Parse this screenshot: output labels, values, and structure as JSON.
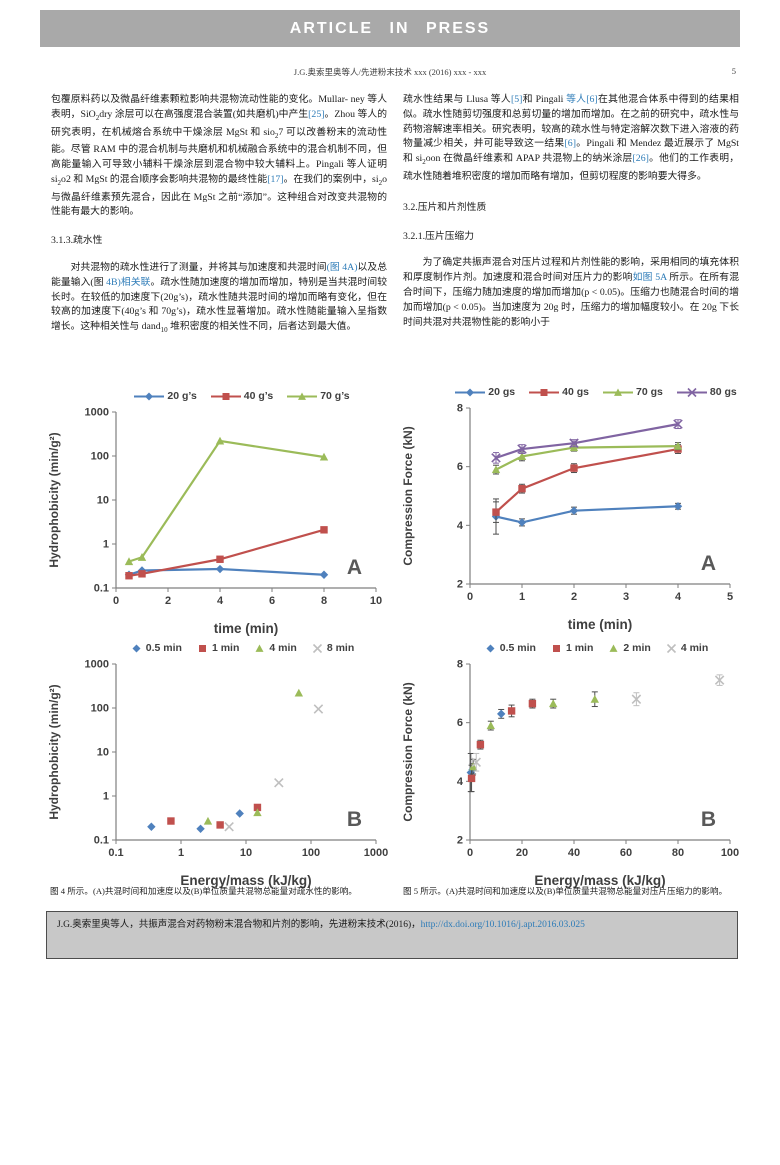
{
  "banner_text": "ARTICLE IN PRESS",
  "header": {
    "running_title": "J.G.奥索里奥等人/先进粉末技术 xxx (2016) xxx - xxx",
    "page_number": "5"
  },
  "columns": {
    "left": {
      "para1": [
        {
          "t": "包覆原料药以及微晶纤维素颗粒影响共混物流动性能的变化。Mullar- ney 等人表明，SiO"
        },
        {
          "t": "2",
          "sub": true
        },
        {
          "t": "dry 涂层可以在高强度混合装置(如共磨机)中产生"
        },
        {
          "t": "[25]",
          "link": true
        },
        {
          "t": "。Zhou 等人的研究表明，在机械熔合系统中干燥涂层 MgSt 和 sio"
        },
        {
          "t": "2",
          "sub": true
        },
        {
          "t": "7 可以改善粉末的流动性能。尽管 RAM 中的混合机制与共磨机和机械融合系统中的混合机制不同，但高能量输入可导致小辅料干燥涂层到混合物中较大辅料上。Pingali 等人证明 si"
        },
        {
          "t": "2",
          "sub": true
        },
        {
          "t": "o2 和 MgSt 的混合顺序会影响共混物的最终性能"
        },
        {
          "t": "[17]",
          "link": true
        },
        {
          "t": "。在我们的案例中，si"
        },
        {
          "t": "2",
          "sub": true
        },
        {
          "t": "o 与微晶纤维素预先混合，因此在 MgSt 之前“添加”。这种组合对改变共混物的性能有最大的影响。"
        }
      ],
      "heading1": "3.1.3.疏水性",
      "para2": [
        {
          "t": "对共混物的疏水性进行了测量，并将其与加速度和共混时间"
        },
        {
          "t": "(图 4A)",
          "link": true
        },
        {
          "t": "以及总能量输入(图 "
        },
        {
          "t": "4B)",
          "link": true
        },
        {
          "t": "相关联",
          "link": true
        },
        {
          "t": "。疏水性随加速度的增加而增加，特别是当共混时间较长时。在较低的加速度下(20g’s)，疏水性随共混时间的增加而略有变化，但在较高的加速度下(40g’s 和 70g’s)，疏水性显著增加。疏水性随能量输入呈指数增长。这种相关性与 dand"
        },
        {
          "t": "10",
          "sub": true
        },
        {
          "t": " 堆积密度的相关性不同，后者达到最大值。"
        }
      ]
    },
    "right": {
      "para1": [
        {
          "t": "疏水性结果与 Llusa 等人"
        },
        {
          "t": "[5]",
          "link": true
        },
        {
          "t": "和 Pingali "
        },
        {
          "t": "等人[6]",
          "link": true
        },
        {
          "t": "在其他混合体系中得到的结果相似。疏水性随剪切强度和总剪切量的增加而增加。在之前的研究中，疏水性与药物溶解速率相关。研究表明，较高的疏水性与特定溶解次数下进入溶液的药物量减少相关，并可能导致这一结果"
        },
        {
          "t": "[6]",
          "link": true
        },
        {
          "t": "。Pingali 和 Mendez 最近展示了 MgSt 和 si"
        },
        {
          "t": "2",
          "sub": true
        },
        {
          "t": "oon 在微晶纤维素和 APAP 共混物上的纳米涂层"
        },
        {
          "t": "[26]",
          "link": true
        },
        {
          "t": "。他们的工作表明，疏水性随着堆积密度的增加而略有增加，但剪切程度的影响要大得多。"
        }
      ],
      "heading1": "3.2.压片和片剂性质",
      "heading2": "3.2.1.压片压缩力",
      "para2": [
        {
          "t": "为了确定共振声混合对压片过程和片剂性能的影响，采用相同的填充体积和厚度制作片剂。加速度和混合时间对压片力的影响"
        },
        {
          "t": "如图 5A",
          "link": true
        },
        {
          "t": " 所示。在所有混合时间下，压缩力随加速度的增加而增加(p < 0.05)。压缩力也随混合时间的增加而增加(p < 0.05)。当加速度为 20g 时，压缩力的增加幅度较小。在 20g 下长时间共混对共混物性能的影响小于"
        }
      ]
    }
  },
  "figures": {
    "fig4_caption": "图 4 所示。(A)共混时间和加速度以及(B)单位质量共混物总能量对疏水性的影响。",
    "fig5_caption": "图 5 所示。(A)共混时间和加速度以及(B)单位质量共混物总能量对压片压缩力的影响。"
  },
  "footer": {
    "citation": [
      {
        "t": "J.G.奥索里奥等人，共振声混合对药物粉末混合物和片剂的影响，先进粉末技术(2016)，"
      },
      {
        "t": "http://dx.doi.org/10.1016/j.apt.2016.03.025",
        "link": true
      }
    ]
  },
  "colors": {
    "blue": "#4F81BD",
    "red": "#C0504D",
    "green": "#9BBB59",
    "purple": "#8064A2",
    "gray_marker": "#BFBFBF",
    "link_blue": "#2e7cb8",
    "banner_gray": "#a9a9a9",
    "footer_gray": "#c8c8c8"
  },
  "chart_data": [
    {
      "id": "fig4A",
      "type": "line",
      "panel_label": "A",
      "xlabel": "time (min)",
      "ylabel": "Hydrophobicity (min/g²)",
      "xscale": "linear",
      "yscale": "log",
      "xlim": [
        0,
        10
      ],
      "xticks": [
        0,
        2,
        4,
        6,
        8,
        10
      ],
      "ylim": [
        0.1,
        1000
      ],
      "yticks": [
        0.1,
        1,
        10,
        100,
        1000
      ],
      "x": [
        0.5,
        1,
        4,
        8
      ],
      "legend_position": "top",
      "grid": false,
      "series": [
        {
          "name": "20 g’s",
          "color": "#4F81BD",
          "marker": "diamond",
          "line": true,
          "values": [
            0.2,
            0.25,
            0.27,
            0.2
          ]
        },
        {
          "name": "40 g’s",
          "color": "#C0504D",
          "marker": "square",
          "line": true,
          "values": [
            0.19,
            0.21,
            0.45,
            2.1
          ]
        },
        {
          "name": "70 g’s",
          "color": "#9BBB59",
          "marker": "triangle",
          "line": true,
          "values": [
            0.4,
            0.5,
            220,
            95
          ]
        }
      ]
    },
    {
      "id": "fig5A",
      "type": "line",
      "panel_label": "A",
      "xlabel": "time (min)",
      "ylabel": "Compression  Force (kN)",
      "xscale": "linear",
      "yscale": "linear",
      "xlim": [
        0,
        5
      ],
      "xticks": [
        0,
        1,
        2,
        3,
        4,
        5
      ],
      "ylim": [
        2,
        8
      ],
      "yticks": [
        2,
        4,
        6,
        8
      ],
      "x": [
        0.5,
        1,
        2,
        4
      ],
      "legend_position": "top",
      "grid": false,
      "series": [
        {
          "name": "20 gs",
          "color": "#4F81BD",
          "marker": "diamond",
          "line": true,
          "values": [
            4.3,
            4.1,
            4.5,
            4.65
          ],
          "yerr": [
            0.6,
            0.12,
            0.12,
            0.1
          ]
        },
        {
          "name": "40 gs",
          "color": "#C0504D",
          "marker": "square",
          "line": true,
          "values": [
            4.45,
            5.25,
            5.95,
            6.6
          ],
          "yerr": [
            0.35,
            0.15,
            0.15,
            0.15
          ]
        },
        {
          "name": "70 gs",
          "color": "#9BBB59",
          "marker": "triangle",
          "line": true,
          "values": [
            5.9,
            6.35,
            6.65,
            6.7
          ],
          "yerr": [
            0.15,
            0.15,
            0.12,
            0.12
          ]
        },
        {
          "name": "80 gs",
          "color": "#8064A2",
          "marker": "x",
          "line": true,
          "values": [
            6.3,
            6.6,
            6.8,
            7.45
          ],
          "yerr": [
            0.18,
            0.15,
            0.12,
            0.15
          ]
        }
      ]
    },
    {
      "id": "fig4B",
      "type": "scatter",
      "panel_label": "B",
      "xlabel": "Energy/mass (kJ/kg)",
      "ylabel": "Hydrophobicity  (min/g²)",
      "xscale": "log",
      "yscale": "log",
      "xlim": [
        0.1,
        1000
      ],
      "xticks": [
        0.1,
        1,
        10,
        100,
        1000
      ],
      "ylim": [
        0.1,
        1000
      ],
      "yticks": [
        0.1,
        1,
        10,
        100,
        1000
      ],
      "legend_position": "top",
      "grid": false,
      "series": [
        {
          "name": "0.5 min",
          "color": "#4F81BD",
          "marker": "diamond",
          "line": false,
          "points": [
            [
              0.35,
              0.2
            ],
            [
              2.0,
              0.18
            ],
            [
              8,
              0.4
            ]
          ]
        },
        {
          "name": "1 min",
          "color": "#C0504D",
          "marker": "square",
          "line": false,
          "points": [
            [
              0.7,
              0.27
            ],
            [
              4,
              0.22
            ],
            [
              15,
              0.55
            ]
          ]
        },
        {
          "name": "4 min",
          "color": "#9BBB59",
          "marker": "triangle",
          "line": false,
          "points": [
            [
              2.6,
              0.27
            ],
            [
              15,
              0.42
            ],
            [
              65,
              220
            ]
          ]
        },
        {
          "name": "8 min",
          "color": "#BFBFBF",
          "marker": "x",
          "line": false,
          "points": [
            [
              5.5,
              0.2
            ],
            [
              32,
              2.0
            ],
            [
              130,
              95
            ]
          ]
        }
      ]
    },
    {
      "id": "fig5B",
      "type": "scatter",
      "panel_label": "B",
      "xlabel": "Energy/mass (kJ/kg)",
      "ylabel": "Compression  Force (kN)",
      "xscale": "linear",
      "yscale": "linear",
      "xlim": [
        0,
        100
      ],
      "xticks": [
        0,
        20,
        40,
        60,
        80,
        100
      ],
      "ylim": [
        2,
        8
      ],
      "yticks": [
        2,
        4,
        6,
        8
      ],
      "legend_position": "top",
      "grid": false,
      "series": [
        {
          "name": "0.5 min",
          "color": "#4F81BD",
          "marker": "diamond",
          "line": false,
          "points": [
            [
              0.3,
              4.3
            ],
            [
              1,
              4.4
            ],
            [
              12,
              6.3
            ]
          ],
          "yerr": [
            0.65,
            0.2,
            0.15
          ]
        },
        {
          "name": "1 min",
          "color": "#C0504D",
          "marker": "square",
          "line": false,
          "points": [
            [
              0.6,
              4.1
            ],
            [
              4,
              5.25
            ],
            [
              16,
              6.4
            ],
            [
              24,
              6.65
            ]
          ],
          "yerr": [
            0.45,
            0.15,
            0.2,
            0.15
          ]
        },
        {
          "name": "2 min",
          "color": "#9BBB59",
          "marker": "triangle",
          "line": false,
          "points": [
            [
              1.2,
              4.5
            ],
            [
              8,
              5.9
            ],
            [
              32,
              6.65
            ],
            [
              48,
              6.8
            ]
          ],
          "yerr": [
            0.25,
            0.15,
            0.15,
            0.25
          ]
        },
        {
          "name": "4 min",
          "color": "#BFBFBF",
          "marker": "x",
          "line": false,
          "points": [
            [
              2.4,
              4.65
            ],
            [
              64,
              6.8
            ],
            [
              96,
              7.45
            ]
          ],
          "yerr": [
            0.3,
            0.22,
            0.18
          ]
        }
      ]
    }
  ]
}
